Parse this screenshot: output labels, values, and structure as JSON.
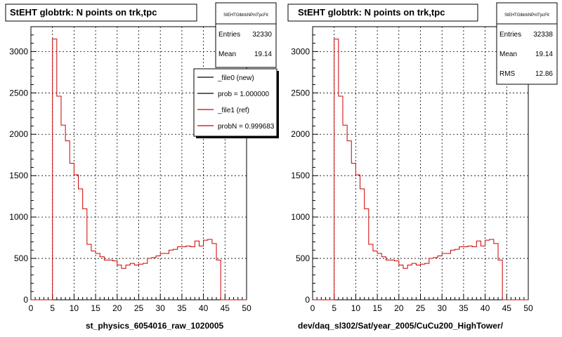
{
  "chart_data": [
    {
      "type": "histogram",
      "title": "StEHT globtrk: N points on trk,tpc",
      "xlabel": "st_physics_6054016_raw_1020005",
      "xlim": [
        0,
        50
      ],
      "ylim": [
        0,
        3300
      ],
      "x_ticks": [
        0,
        5,
        10,
        15,
        20,
        25,
        30,
        35,
        40,
        45,
        50
      ],
      "y_ticks": [
        0,
        500,
        1000,
        1500,
        2000,
        2500,
        3000
      ],
      "grid": true,
      "bin_width": 1,
      "x": [
        0,
        1,
        2,
        3,
        4,
        5,
        6,
        7,
        8,
        9,
        10,
        11,
        12,
        13,
        14,
        15,
        16,
        17,
        18,
        19,
        20,
        21,
        22,
        23,
        24,
        25,
        26,
        27,
        28,
        29,
        30,
        31,
        32,
        33,
        34,
        35,
        36,
        37,
        38,
        39,
        40,
        41,
        42,
        43,
        44,
        45,
        46,
        47,
        48,
        49
      ],
      "values": [
        0,
        0,
        0,
        0,
        0,
        3150,
        2460,
        2110,
        1920,
        1650,
        1510,
        1340,
        1100,
        670,
        590,
        560,
        520,
        480,
        480,
        470,
        420,
        380,
        420,
        440,
        420,
        430,
        440,
        500,
        510,
        530,
        560,
        560,
        600,
        610,
        640,
        640,
        650,
        640,
        710,
        650,
        720,
        730,
        680,
        480,
        0,
        0,
        0,
        0,
        0,
        0
      ],
      "stats": {
        "name": "StEHTGlbtrkNPntTpcFit",
        "rows": [
          {
            "label": "Entries",
            "value": "32330"
          },
          {
            "label": "Mean",
            "value": "19.14"
          }
        ]
      },
      "legend": {
        "placement": "top-right",
        "entries": [
          {
            "text": "_file0 (new)",
            "color": "#000000"
          },
          {
            "text": "prob = 1.000000",
            "color": "#000000"
          },
          {
            "text": "_file1 (ref)",
            "color": "#cc0000"
          },
          {
            "text": "probN = 0.999683",
            "color": "#cc0000"
          }
        ]
      },
      "series_color": "#cc0000"
    },
    {
      "type": "histogram",
      "title": "StEHT globtrk: N points on trk,tpc",
      "xlabel": "dev/daq_sl302/Sat/year_2005/CuCu200_HighTower/",
      "xlim": [
        0,
        50
      ],
      "ylim": [
        0,
        3300
      ],
      "x_ticks": [
        0,
        5,
        10,
        15,
        20,
        25,
        30,
        35,
        40,
        45,
        50
      ],
      "y_ticks": [
        0,
        500,
        1000,
        1500,
        2000,
        2500,
        3000
      ],
      "grid": true,
      "bin_width": 1,
      "x": [
        0,
        1,
        2,
        3,
        4,
        5,
        6,
        7,
        8,
        9,
        10,
        11,
        12,
        13,
        14,
        15,
        16,
        17,
        18,
        19,
        20,
        21,
        22,
        23,
        24,
        25,
        26,
        27,
        28,
        29,
        30,
        31,
        32,
        33,
        34,
        35,
        36,
        37,
        38,
        39,
        40,
        41,
        42,
        43,
        44,
        45,
        46,
        47,
        48,
        49
      ],
      "values": [
        0,
        0,
        0,
        0,
        0,
        3150,
        2460,
        2110,
        1920,
        1650,
        1510,
        1340,
        1100,
        670,
        590,
        560,
        520,
        480,
        480,
        470,
        420,
        380,
        420,
        440,
        420,
        430,
        440,
        500,
        510,
        530,
        560,
        560,
        600,
        610,
        640,
        640,
        650,
        640,
        710,
        650,
        720,
        730,
        680,
        480,
        0,
        0,
        0,
        0,
        0,
        0
      ],
      "stats": {
        "name": "StEHTGlbtrkNPntTpcFit",
        "rows": [
          {
            "label": "Entries",
            "value": "32338"
          },
          {
            "label": "Mean",
            "value": "19.14"
          },
          {
            "label": "RMS",
            "value": "12.86"
          }
        ]
      },
      "series_color": "#cc0000"
    }
  ]
}
